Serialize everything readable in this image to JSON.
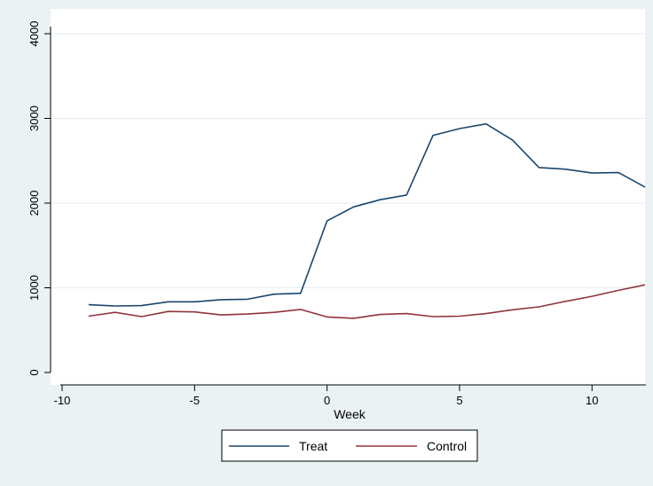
{
  "chart_data": {
    "type": "line",
    "title": "",
    "xlabel": "Week",
    "ylabel": "",
    "xlim": [
      -10,
      12
    ],
    "ylim": [
      0,
      4000
    ],
    "xticks": [
      -10,
      -5,
      0,
      5,
      10
    ],
    "yticks": [
      0,
      1000,
      2000,
      3000,
      4000
    ],
    "grid": "horizontal",
    "legend_position": "bottom",
    "x": [
      -9,
      -8,
      -7,
      -6,
      -5,
      -4,
      -3,
      -2,
      -1,
      0,
      1,
      2,
      3,
      4,
      5,
      6,
      7,
      8,
      9,
      10,
      11,
      12
    ],
    "series": [
      {
        "name": "Treat",
        "color": "#1a476f",
        "values": [
          800,
          785,
          790,
          835,
          835,
          860,
          865,
          925,
          935,
          1790,
          1955,
          2040,
          2095,
          2800,
          2880,
          2935,
          2745,
          2420,
          2400,
          2355,
          2360,
          2190
        ]
      },
      {
        "name": "Control",
        "color": "#90353b",
        "values": [
          665,
          710,
          660,
          720,
          715,
          680,
          690,
          710,
          745,
          655,
          640,
          685,
          695,
          660,
          665,
          695,
          740,
          775,
          840,
          900,
          970,
          1035
        ]
      }
    ]
  }
}
